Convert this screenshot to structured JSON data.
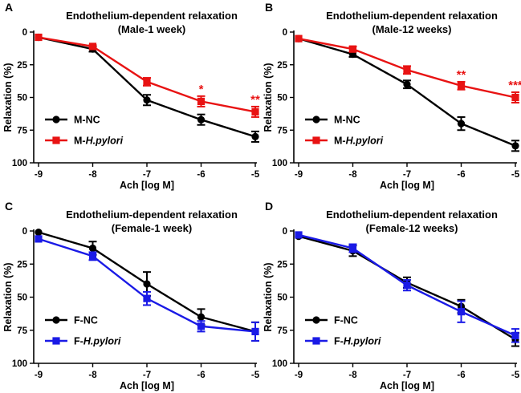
{
  "chart_data": [
    {
      "type": "line",
      "panel": "A",
      "title": "Endothelium-dependent relaxation",
      "subtitle": "(Male-1 week)",
      "xlabel": "Ach [log M]",
      "ylabel": "Relaxation (%)",
      "x": [
        -9,
        -8,
        -7,
        -6,
        -5
      ],
      "xticks": [
        "-9",
        "-8",
        "-7",
        "-6",
        "-5"
      ],
      "yticks": [
        "0",
        "25",
        "50",
        "75",
        "100"
      ],
      "ylim": [
        0,
        100
      ],
      "y_inverted": true,
      "legend_position": "bottom-left",
      "series": [
        {
          "name": "M-NC",
          "name_prefix": "M-",
          "name_italic": "NC",
          "italic": false,
          "color": "#000000",
          "marker": "circle",
          "values": [
            4,
            13,
            52,
            67,
            80
          ],
          "errors": [
            0,
            2,
            4,
            4,
            4
          ]
        },
        {
          "name": "M-H.pylori",
          "name_prefix": "M-",
          "name_italic": "H.pylori",
          "italic": true,
          "color": "#e81313",
          "marker": "square",
          "values": [
            4,
            11,
            38,
            53,
            61
          ],
          "errors": [
            0,
            1,
            3,
            4,
            4
          ]
        }
      ],
      "annotations": [
        {
          "x": -6,
          "label": "*",
          "color": "#e81313"
        },
        {
          "x": -5,
          "label": "**",
          "color": "#e81313"
        }
      ]
    },
    {
      "type": "line",
      "panel": "B",
      "title": "Endothelium-dependent relaxation",
      "subtitle": "(Male-12 weeks)",
      "xlabel": "Ach [log M]",
      "ylabel": "Relaxation (%)",
      "x": [
        -9,
        -8,
        -7,
        -6,
        -5
      ],
      "xticks": [
        "-9",
        "-8",
        "-7",
        "-6",
        "-5"
      ],
      "yticks": [
        "0",
        "25",
        "50",
        "75",
        "100"
      ],
      "ylim": [
        0,
        100
      ],
      "y_inverted": true,
      "legend_position": "bottom-left",
      "series": [
        {
          "name": "M-NC",
          "name_prefix": "M-",
          "name_italic": "NC",
          "italic": false,
          "color": "#000000",
          "marker": "circle",
          "values": [
            5,
            17,
            40,
            70,
            87
          ],
          "errors": [
            0,
            2,
            3,
            5,
            4
          ]
        },
        {
          "name": "M-H.pylori",
          "name_prefix": "M-",
          "name_italic": "H.pylori",
          "italic": true,
          "color": "#e81313",
          "marker": "square",
          "values": [
            5,
            13,
            29,
            41,
            50
          ],
          "errors": [
            0,
            2,
            3,
            3,
            4
          ]
        }
      ],
      "annotations": [
        {
          "x": -6,
          "label": "**",
          "color": "#e81313"
        },
        {
          "x": -5,
          "label": "***",
          "color": "#e81313"
        }
      ]
    },
    {
      "type": "line",
      "panel": "C",
      "title": "Endothelium-dependent relaxation",
      "subtitle": "(Female-1 week)",
      "xlabel": "Ach [log M]",
      "ylabel": "Relaxation (%)",
      "x": [
        -9,
        -8,
        -7,
        -6,
        -5
      ],
      "xticks": [
        "-9",
        "-8",
        "-7",
        "-6",
        "-5"
      ],
      "yticks": [
        "0",
        "25",
        "50",
        "75",
        "100"
      ],
      "ylim": [
        0,
        100
      ],
      "y_inverted": true,
      "legend_position": "bottom-left",
      "series": [
        {
          "name": "F-NC",
          "name_prefix": "F-",
          "name_italic": "NC",
          "italic": false,
          "color": "#000000",
          "marker": "circle",
          "values": [
            1,
            13,
            40,
            65,
            76
          ],
          "errors": [
            0,
            5,
            9,
            6,
            7
          ]
        },
        {
          "name": "F-H.pylori",
          "name_prefix": "F-",
          "name_italic": "H.pylori",
          "italic": true,
          "color": "#1a1ae6",
          "marker": "square",
          "values": [
            6,
            19,
            51,
            72,
            76
          ],
          "errors": [
            0,
            3,
            5,
            4,
            7
          ]
        }
      ],
      "annotations": []
    },
    {
      "type": "line",
      "panel": "D",
      "title": "Endothelium-dependent relaxation",
      "subtitle": "(Female-12 weeks)",
      "xlabel": "Ach [log M]",
      "ylabel": "Relaxation (%)",
      "x": [
        -9,
        -8,
        -7,
        -6,
        -5
      ],
      "xticks": [
        "-9",
        "-8",
        "-7",
        "-6",
        "-5"
      ],
      "yticks": [
        "0",
        "25",
        "50",
        "75",
        "100"
      ],
      "ylim": [
        0,
        100
      ],
      "y_inverted": true,
      "legend_position": "bottom-left",
      "series": [
        {
          "name": "F-NC",
          "name_prefix": "F-",
          "name_italic": "NC",
          "italic": false,
          "color": "#000000",
          "marker": "circle",
          "values": [
            4,
            15,
            39,
            57,
            82
          ],
          "errors": [
            0,
            4,
            4,
            5,
            5
          ]
        },
        {
          "name": "F-H.pylori",
          "name_prefix": "F-",
          "name_italic": "H.pylori",
          "italic": true,
          "color": "#1a1ae6",
          "marker": "square",
          "values": [
            3,
            13,
            41,
            61,
            79
          ],
          "errors": [
            0,
            3,
            4,
            8,
            5
          ]
        }
      ],
      "annotations": []
    }
  ]
}
